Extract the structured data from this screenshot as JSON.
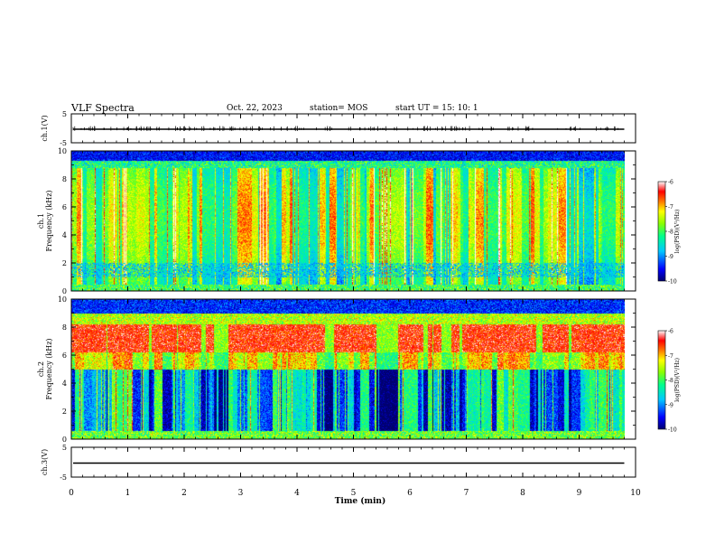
{
  "header": {
    "title": "VLF Spectra",
    "date": "Oct. 22, 2023",
    "station": "station= MOS",
    "start": "start  UT =   15: 10: 1"
  },
  "chart_data": {
    "type": "heatmap",
    "title": "VLF Spectra",
    "xlabel": "Time (min)",
    "xlim": [
      0,
      10
    ],
    "x_ticks": [
      "0",
      "1",
      "2",
      "3",
      "4",
      "5",
      "6",
      "7",
      "8",
      "9",
      "10"
    ],
    "data_end_min": 9.8,
    "panels": [
      {
        "kind": "waveform",
        "ylabel": "ch.1(V)",
        "ylim": [
          -5,
          5
        ],
        "y_ticks": [
          "5",
          "-5"
        ],
        "level": -0.3
      },
      {
        "kind": "spectrogram",
        "ylabel": "ch.1\nFrequency (kHz)",
        "ylabel_top": "ch.1",
        "ylabel_bottom": "Frequency (kHz)",
        "ylim": [
          0,
          10
        ],
        "y_ticks": [
          "0",
          "2",
          "4",
          "6",
          "8",
          "10"
        ],
        "colorbar": {
          "label": "log(PSD)(V²/Hz)",
          "ticks": [
            "-6",
            "-7",
            "-8",
            "-9",
            "-10"
          ],
          "range": [
            -10,
            -6
          ]
        }
      },
      {
        "kind": "spectrogram",
        "ylabel": "ch.2\nFrequency (kHz)",
        "ylabel_top": "ch.2",
        "ylabel_bottom": "Frequency (kHz)",
        "ylim": [
          0,
          10
        ],
        "y_ticks": [
          "0",
          "2",
          "4",
          "6",
          "8",
          "10"
        ],
        "colorbar": {
          "label": "log(PSD)(V²/Hz)",
          "ticks": [
            "-6",
            "-7",
            "-8",
            "-9",
            "-10"
          ],
          "range": [
            -10,
            -6
          ]
        }
      },
      {
        "kind": "waveform",
        "ylabel": "ch.3(V)",
        "ylim": [
          -5,
          5
        ],
        "y_ticks": [
          "5",
          "-5"
        ],
        "level": -0.3
      }
    ],
    "colors": {
      "colormap": [
        "#000080",
        "#0000ff",
        "#00c8ff",
        "#00ff80",
        "#80ff00",
        "#ffff00",
        "#ff8000",
        "#ff0000",
        "#ff8080",
        "#ffffff"
      ]
    }
  }
}
